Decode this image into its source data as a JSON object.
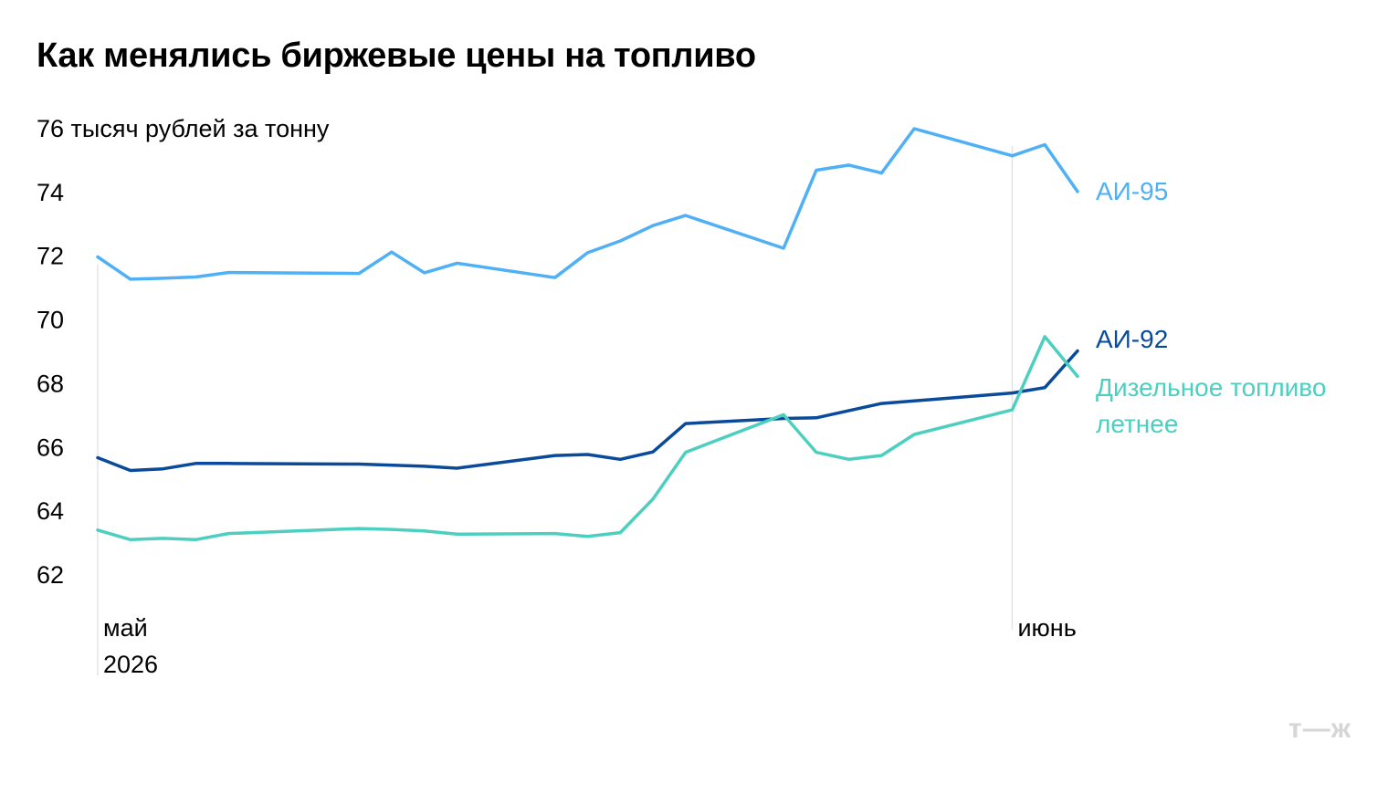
{
  "title": "Как менялись биржевые цены на топливо",
  "brand": "т—ж",
  "chart_data": {
    "type": "line",
    "unit_label": "тысяч рублей за тонну",
    "ylim": [
      60.5,
      76
    ],
    "yticks": [
      76,
      74,
      72,
      70,
      68,
      66,
      64,
      62
    ],
    "y_top_tick": 76,
    "x_range": [
      0,
      30
    ],
    "x_labels": [
      {
        "x": 0,
        "lines": [
          "май",
          "2026"
        ]
      },
      {
        "x": 28,
        "lines": [
          "июнь"
        ]
      }
    ],
    "vertical_markers": [
      28
    ],
    "grid": false,
    "series": [
      {
        "name": "АИ-95",
        "color": "#4FB0F5",
        "label_lines": [
          "АИ-95"
        ],
        "points": [
          [
            0,
            71.95
          ],
          [
            1,
            71.25
          ],
          [
            2,
            71.28
          ],
          [
            3,
            71.32
          ],
          [
            4,
            71.46
          ],
          [
            8,
            71.43
          ],
          [
            9,
            72.1
          ],
          [
            10,
            71.45
          ],
          [
            11,
            71.75
          ],
          [
            14,
            71.3
          ],
          [
            15,
            72.08
          ],
          [
            16,
            72.45
          ],
          [
            17,
            72.93
          ],
          [
            18,
            73.25
          ],
          [
            21,
            72.22
          ],
          [
            22,
            74.67
          ],
          [
            23,
            74.83
          ],
          [
            24,
            74.58
          ],
          [
            25,
            75.97
          ],
          [
            28,
            75.12
          ],
          [
            29,
            75.47
          ],
          [
            30,
            74.0
          ]
        ]
      },
      {
        "name": "АИ-92",
        "color": "#0A4A9A",
        "label_lines": [
          "АИ-92"
        ],
        "points": [
          [
            0,
            65.65
          ],
          [
            1,
            65.25
          ],
          [
            2,
            65.3
          ],
          [
            3,
            65.47
          ],
          [
            4,
            65.47
          ],
          [
            8,
            65.45
          ],
          [
            10,
            65.38
          ],
          [
            11,
            65.32
          ],
          [
            14,
            65.72
          ],
          [
            15,
            65.75
          ],
          [
            16,
            65.6
          ],
          [
            17,
            65.83
          ],
          [
            18,
            66.72
          ],
          [
            21,
            66.88
          ],
          [
            22,
            66.9
          ],
          [
            24,
            67.35
          ],
          [
            25,
            67.43
          ],
          [
            28,
            67.68
          ],
          [
            29,
            67.85
          ],
          [
            30,
            69.0
          ]
        ]
      },
      {
        "name": "Дизельное топливо летнее",
        "color": "#4DCFC0",
        "label_lines": [
          "Дизельное топливо",
          "летнее"
        ],
        "points": [
          [
            0,
            63.38
          ],
          [
            1,
            63.08
          ],
          [
            2,
            63.12
          ],
          [
            3,
            63.08
          ],
          [
            4,
            63.27
          ],
          [
            8,
            63.43
          ],
          [
            9,
            63.4
          ],
          [
            10,
            63.35
          ],
          [
            11,
            63.25
          ],
          [
            14,
            63.27
          ],
          [
            15,
            63.18
          ],
          [
            16,
            63.3
          ],
          [
            17,
            64.35
          ],
          [
            18,
            65.82
          ],
          [
            21,
            67.0
          ],
          [
            22,
            65.82
          ],
          [
            23,
            65.6
          ],
          [
            24,
            65.72
          ],
          [
            25,
            66.38
          ],
          [
            28,
            67.15
          ],
          [
            29,
            69.45
          ],
          [
            30,
            68.2
          ]
        ]
      }
    ]
  }
}
